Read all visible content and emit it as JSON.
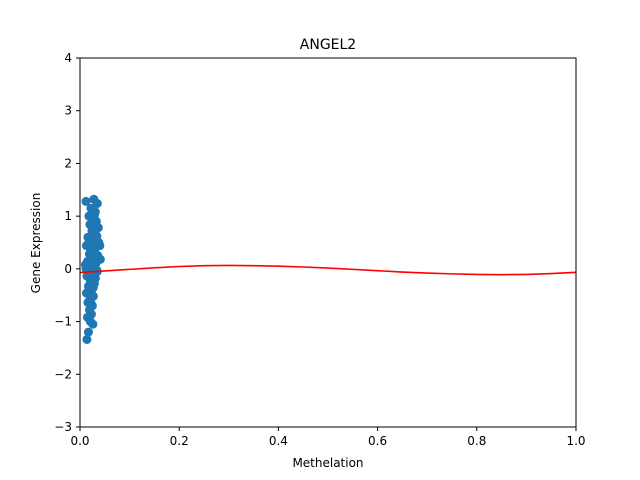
{
  "chart_data": {
    "type": "scatter",
    "title": "ANGEL2",
    "xlabel": "Methelation",
    "ylabel": "Gene Expression",
    "xlim": [
      0.0,
      1.0
    ],
    "ylim": [
      -3,
      4
    ],
    "xticks": [
      "0.0",
      "0.2",
      "0.4",
      "0.6",
      "0.8",
      "1.0"
    ],
    "yticks": [
      "−3",
      "−2",
      "−1",
      "0",
      "1",
      "2",
      "3",
      "4"
    ],
    "grid": false,
    "colors": {
      "points": "#1f77b4",
      "curve": "#ff0000"
    },
    "series": [
      {
        "kind": "scatter",
        "points": [
          [
            0.012,
            1.28
          ],
          [
            0.028,
            1.32
          ],
          [
            0.035,
            1.24
          ],
          [
            0.022,
            1.15
          ],
          [
            0.031,
            1.08
          ],
          [
            0.018,
            1.0
          ],
          [
            0.026,
            0.95
          ],
          [
            0.033,
            0.9
          ],
          [
            0.02,
            0.84
          ],
          [
            0.037,
            0.78
          ],
          [
            0.024,
            0.72
          ],
          [
            0.029,
            0.66
          ],
          [
            0.016,
            0.6
          ],
          [
            0.034,
            0.62
          ],
          [
            0.021,
            0.55
          ],
          [
            0.038,
            0.5
          ],
          [
            0.027,
            0.46
          ],
          [
            0.013,
            0.44
          ],
          [
            0.04,
            0.44
          ],
          [
            0.023,
            0.38
          ],
          [
            0.03,
            0.33
          ],
          [
            0.019,
            0.28
          ],
          [
            0.036,
            0.25
          ],
          [
            0.025,
            0.2
          ],
          [
            0.041,
            0.18
          ],
          [
            0.015,
            0.14
          ],
          [
            0.032,
            0.1
          ],
          [
            0.022,
            0.06
          ],
          [
            0.011,
            0.08
          ],
          [
            0.028,
            0.02
          ],
          [
            0.034,
            -0.03
          ],
          [
            0.018,
            -0.05
          ],
          [
            0.026,
            -0.1
          ],
          [
            0.014,
            -0.14
          ],
          [
            0.031,
            -0.18
          ],
          [
            0.021,
            -0.24
          ],
          [
            0.029,
            -0.28
          ],
          [
            0.017,
            -0.33
          ],
          [
            0.024,
            -0.4
          ],
          [
            0.013,
            -0.46
          ],
          [
            0.027,
            -0.52
          ],
          [
            0.02,
            -0.58
          ],
          [
            0.016,
            -0.64
          ],
          [
            0.025,
            -0.7
          ],
          [
            0.019,
            -0.78
          ],
          [
            0.023,
            -0.86
          ],
          [
            0.015,
            -0.92
          ],
          [
            0.021,
            -1.0
          ],
          [
            0.026,
            -1.05
          ],
          [
            0.017,
            -1.2
          ],
          [
            0.014,
            -1.34
          ],
          [
            0.03,
            0.7
          ],
          [
            0.02,
            0.3
          ],
          [
            0.035,
            -0.05
          ],
          [
            0.018,
            0.5
          ],
          [
            0.027,
            -0.35
          ],
          [
            0.032,
            0.85
          ],
          [
            0.022,
            -0.65
          ],
          [
            0.012,
            0.0
          ],
          [
            0.029,
            1.02
          ]
        ]
      },
      {
        "kind": "line",
        "x": [
          0.0,
          0.05,
          0.1,
          0.15,
          0.2,
          0.25,
          0.3,
          0.35,
          0.4,
          0.45,
          0.5,
          0.55,
          0.6,
          0.65,
          0.7,
          0.75,
          0.8,
          0.85,
          0.9,
          0.95,
          1.0
        ],
        "y": [
          -0.07,
          -0.04,
          -0.01,
          0.02,
          0.045,
          0.06,
          0.065,
          0.06,
          0.05,
          0.035,
          0.015,
          -0.01,
          -0.035,
          -0.06,
          -0.08,
          -0.095,
          -0.105,
          -0.11,
          -0.105,
          -0.09,
          -0.065
        ]
      }
    ]
  }
}
